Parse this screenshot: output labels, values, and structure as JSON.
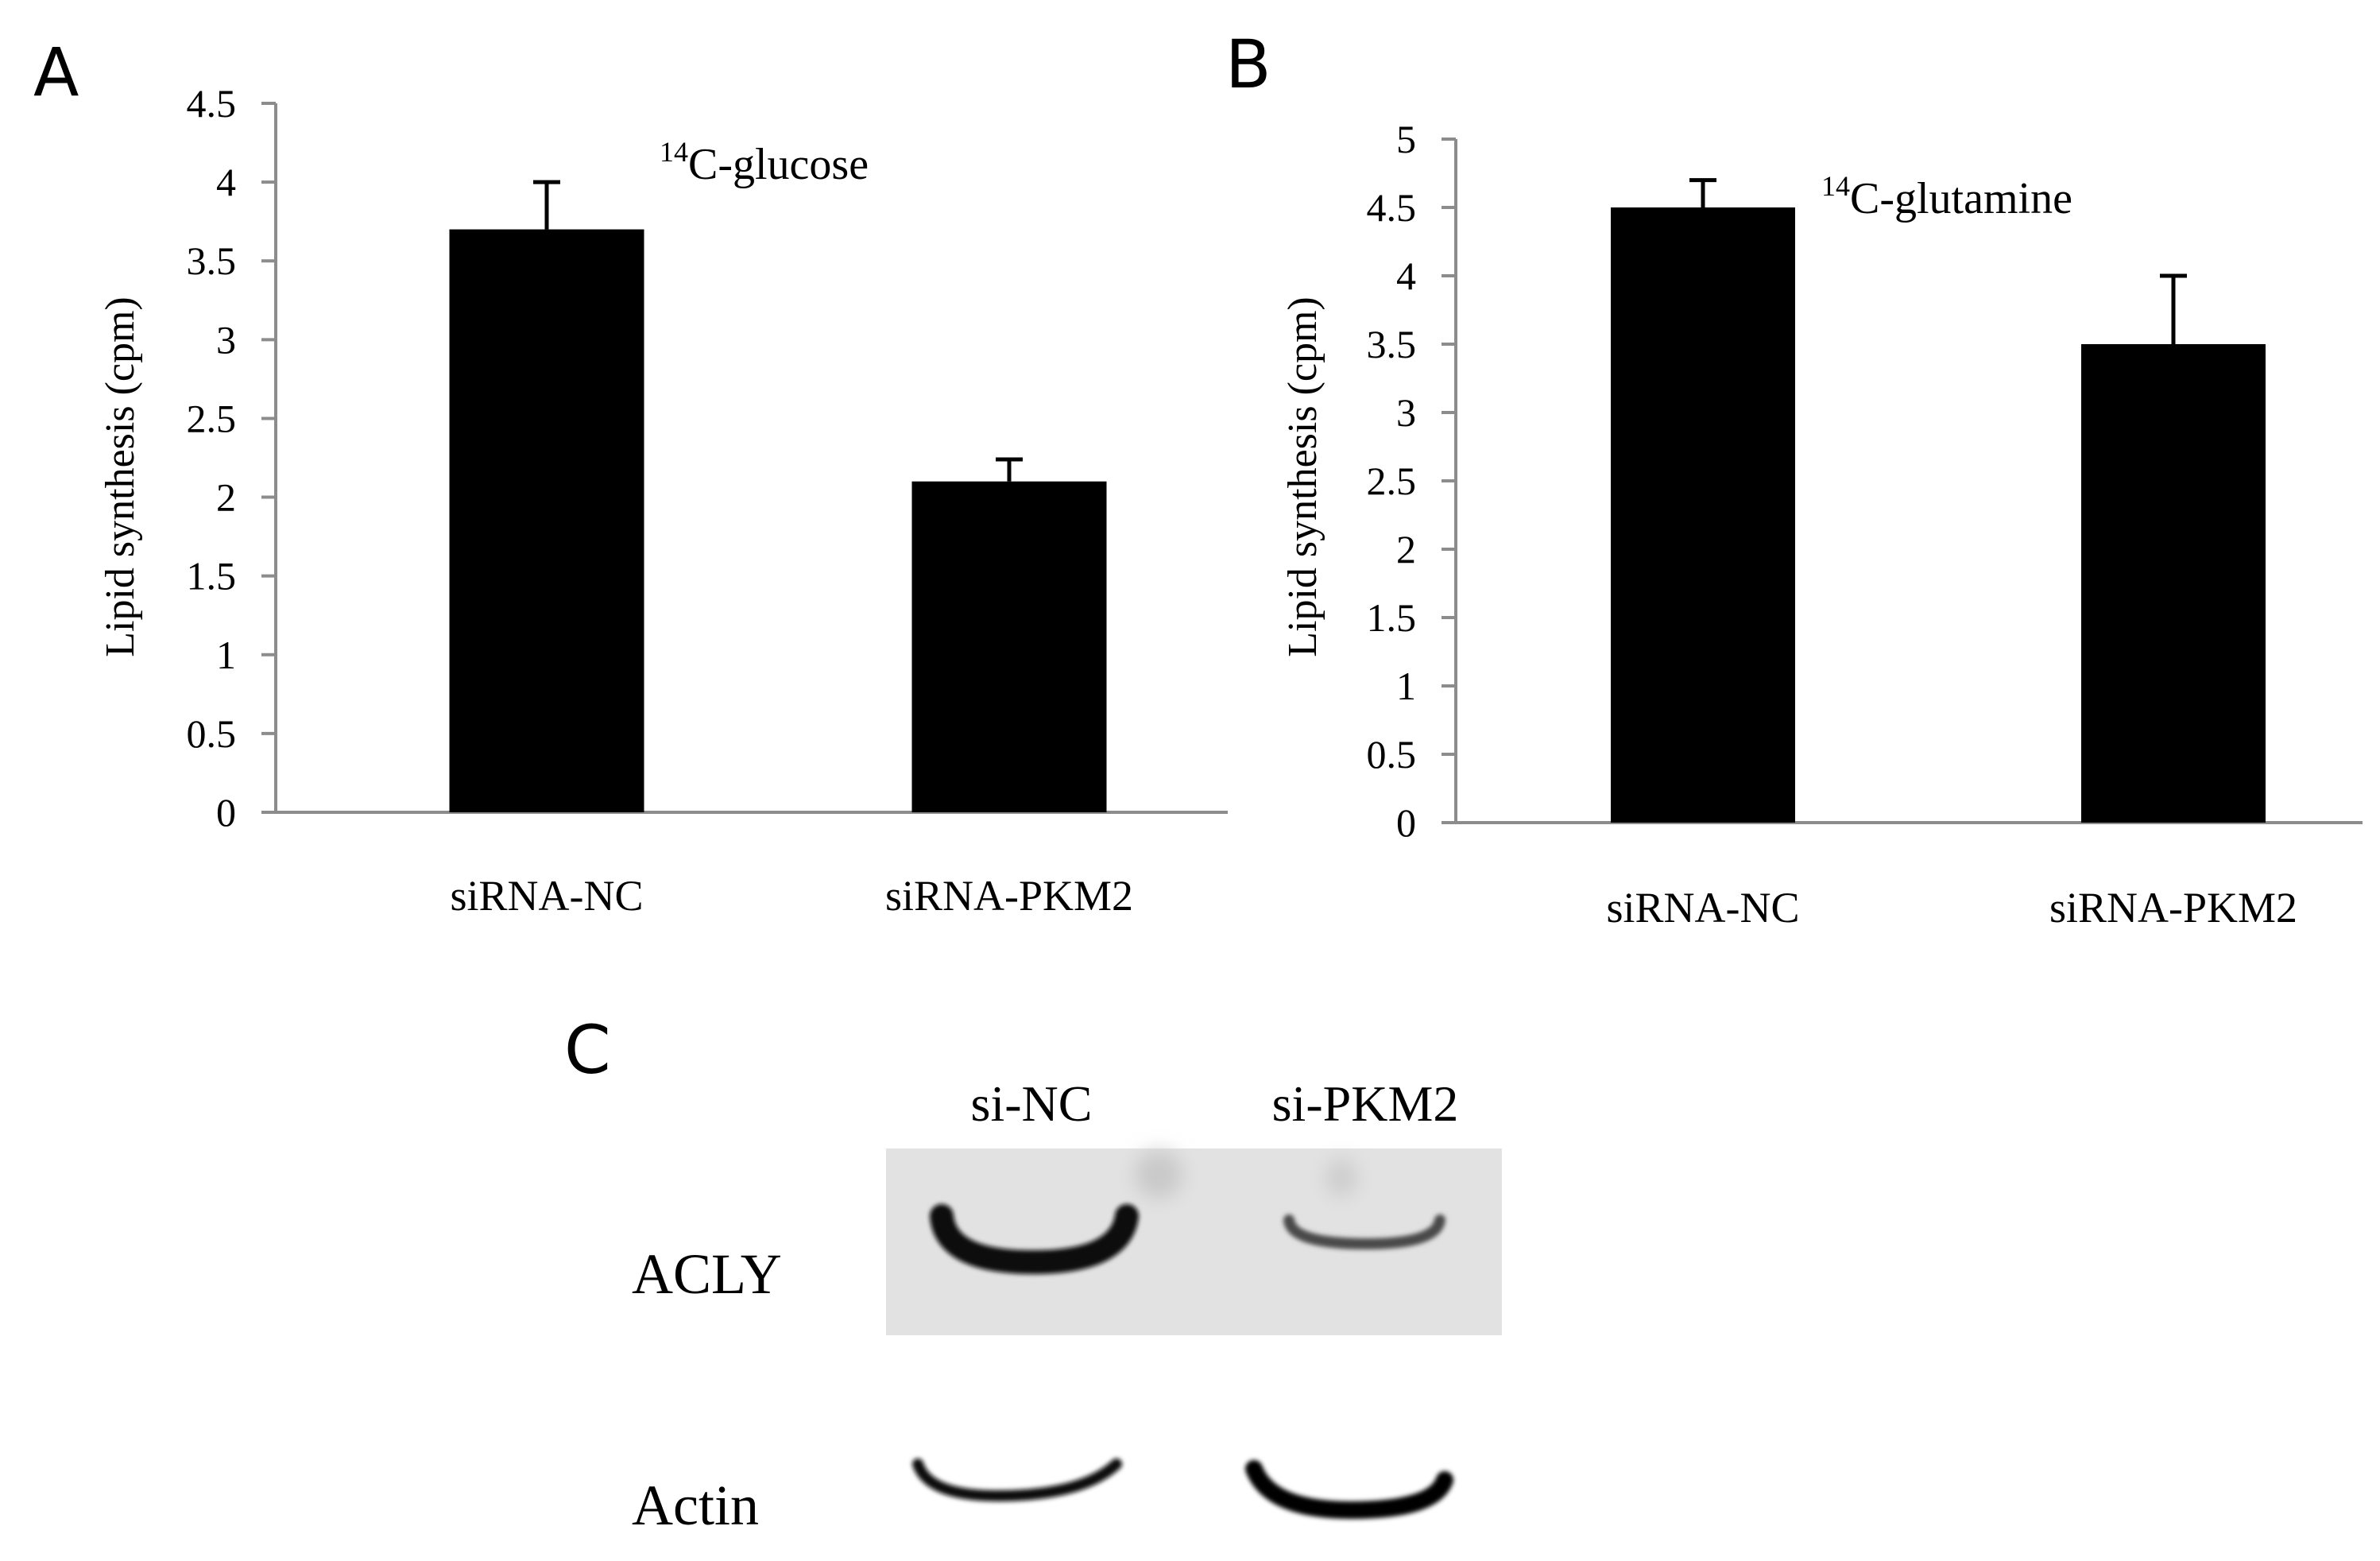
{
  "panels": {
    "a": "A",
    "b": "B",
    "c": "C"
  },
  "chart_data": [
    {
      "type": "bar",
      "panel": "A",
      "categories": [
        "siRNA-NC",
        "siRNA-PKM2"
      ],
      "values": [
        3.7,
        2.1
      ],
      "errors": [
        0.3,
        0.14
      ],
      "ylabel": "Lipid synthesis (cpm)",
      "annotation": {
        "sup": "14",
        "text": "C-glucose"
      },
      "ylim": [
        0,
        4.5
      ],
      "yticks": [
        "0",
        "0.5",
        "1",
        "1.5",
        "2",
        "2.5",
        "3",
        "3.5",
        "4",
        "4.5"
      ],
      "bar_color": "#000000",
      "axis_color": "#8c8c8c",
      "grid": false
    },
    {
      "type": "bar",
      "panel": "B",
      "categories": [
        "siRNA-NC",
        "siRNA-PKM2"
      ],
      "values": [
        4.5,
        3.5
      ],
      "errors": [
        0.2,
        0.5
      ],
      "ylabel": "Lipid synthesis (cpm)",
      "annotation": {
        "sup": "14",
        "text": "C-glutamine"
      },
      "ylim": [
        0,
        5
      ],
      "yticks": [
        "0",
        "0.5",
        "1",
        "1.5",
        "2",
        "2.5",
        "3",
        "3.5",
        "4",
        "4.5",
        "5"
      ],
      "bar_color": "#000000",
      "axis_color": "#8c8c8c",
      "grid": false
    }
  ],
  "western_blot": {
    "lanes": [
      "si-NC",
      "si-PKM2"
    ],
    "proteins": [
      "ACLY",
      "Actin"
    ],
    "band_strength": {
      "ACLY": [
        1.0,
        0.3
      ],
      "Actin": [
        0.8,
        1.0
      ]
    }
  }
}
